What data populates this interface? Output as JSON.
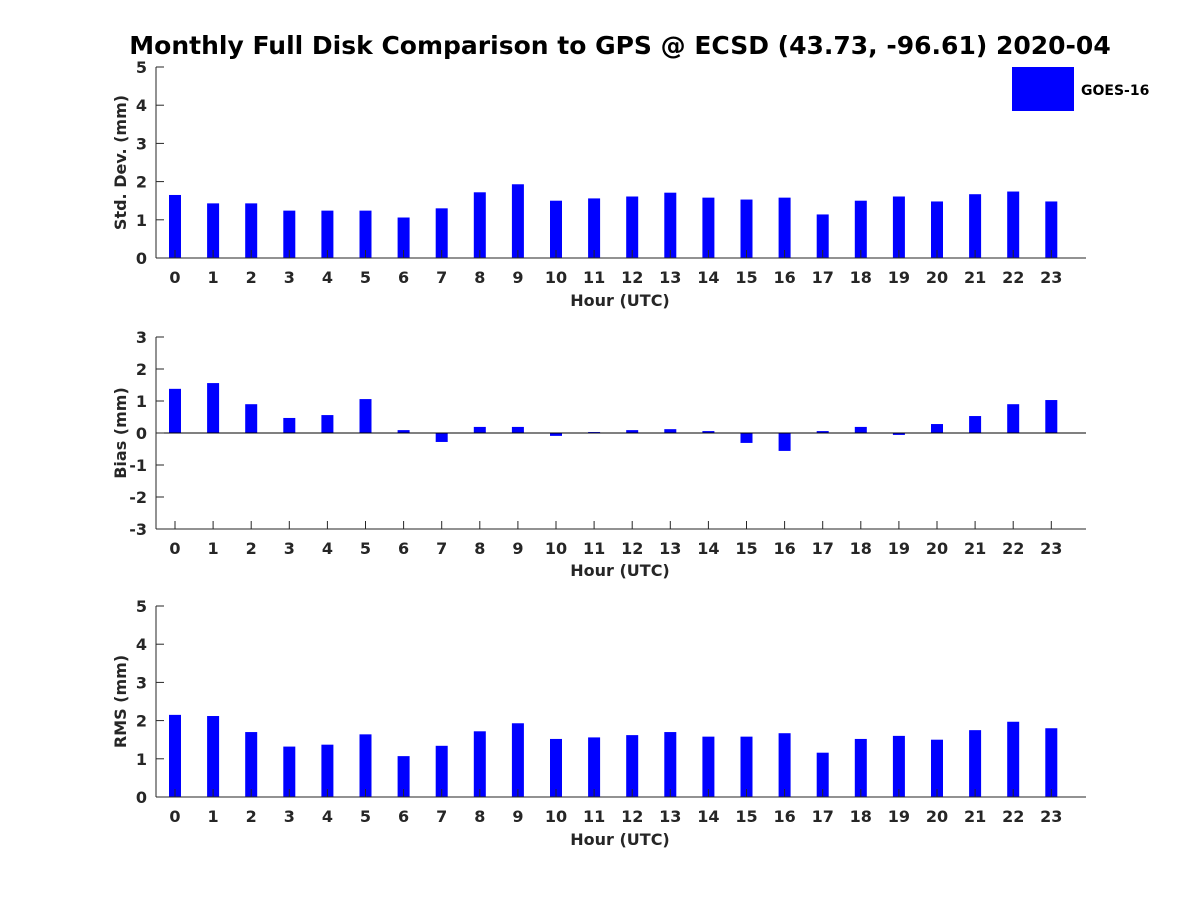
{
  "colors": {
    "bar": "#0000ff",
    "axis": "#262626",
    "background": "#ffffff"
  },
  "chart_data": {
    "type": "bar",
    "title": "Monthly Full Disk Comparison to GPS @ ECSD (43.73, -96.61) 2020-04",
    "legend": {
      "label": "GOES-16",
      "placement": "top-right"
    },
    "panels": [
      {
        "id": "stddev",
        "ylabel": "Std. Dev. (mm)",
        "xlabel": "Hour (UTC)",
        "ylim": [
          0,
          5
        ],
        "yticks": [
          0,
          1,
          2,
          3,
          4,
          5
        ],
        "categories": [
          "0",
          "1",
          "2",
          "3",
          "4",
          "5",
          "6",
          "7",
          "8",
          "9",
          "10",
          "11",
          "12",
          "13",
          "14",
          "15",
          "16",
          "17",
          "18",
          "19",
          "20",
          "21",
          "22",
          "23"
        ],
        "series": [
          {
            "name": "GOES-16",
            "values": [
              1.65,
              1.43,
              1.43,
              1.24,
              1.24,
              1.24,
              1.06,
              1.3,
              1.72,
              1.93,
              1.5,
              1.56,
              1.61,
              1.71,
              1.58,
              1.53,
              1.58,
              1.14,
              1.5,
              1.61,
              1.48,
              1.67,
              1.74,
              1.48
            ]
          }
        ]
      },
      {
        "id": "bias",
        "ylabel": "Bias (mm)",
        "xlabel": "Hour (UTC)",
        "ylim": [
          -3,
          3
        ],
        "yticks": [
          -3,
          -2,
          -1,
          0,
          1,
          2,
          3
        ],
        "categories": [
          "0",
          "1",
          "2",
          "3",
          "4",
          "5",
          "6",
          "7",
          "8",
          "9",
          "10",
          "11",
          "12",
          "13",
          "14",
          "15",
          "16",
          "17",
          "18",
          "19",
          "20",
          "21",
          "22",
          "23"
        ],
        "series": [
          {
            "name": "GOES-16",
            "values": [
              1.38,
              1.56,
              0.9,
              0.47,
              0.56,
              1.06,
              0.09,
              -0.28,
              0.19,
              0.19,
              -0.09,
              0.03,
              0.09,
              0.12,
              0.06,
              -0.31,
              -0.56,
              0.06,
              0.19,
              -0.06,
              0.28,
              0.53,
              0.9,
              1.03
            ]
          }
        ]
      },
      {
        "id": "rms",
        "ylabel": "RMS (mm)",
        "xlabel": "Hour (UTC)",
        "ylim": [
          0,
          5
        ],
        "yticks": [
          0,
          1,
          2,
          3,
          4,
          5
        ],
        "categories": [
          "0",
          "1",
          "2",
          "3",
          "4",
          "5",
          "6",
          "7",
          "8",
          "9",
          "10",
          "11",
          "12",
          "13",
          "14",
          "15",
          "16",
          "17",
          "18",
          "19",
          "20",
          "21",
          "22",
          "23"
        ],
        "series": [
          {
            "name": "GOES-16",
            "values": [
              2.15,
              2.12,
              1.7,
              1.32,
              1.37,
              1.64,
              1.07,
              1.34,
              1.72,
              1.93,
              1.52,
              1.56,
              1.62,
              1.7,
              1.58,
              1.58,
              1.67,
              1.16,
              1.52,
              1.6,
              1.5,
              1.75,
              1.97,
              1.8
            ]
          }
        ]
      }
    ]
  }
}
